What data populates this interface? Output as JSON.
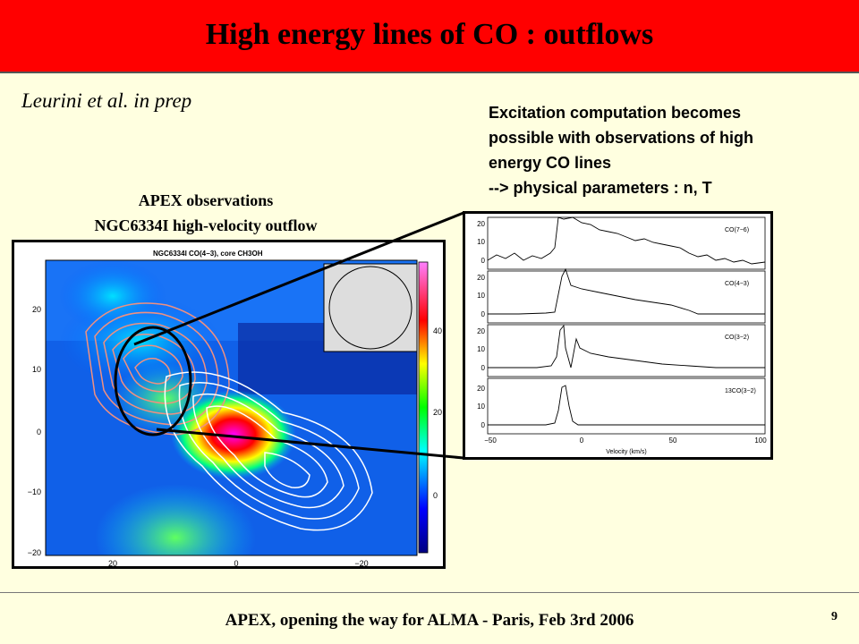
{
  "header": {
    "title": "High energy lines of CO : outflows",
    "bg_color": "#ff0000"
  },
  "author": "Leurini et al. in prep",
  "excitation": {
    "lines": [
      "Excitation computation becomes",
      "possible with observations of high",
      "energy CO lines",
      "-->  physical parameters : n, T"
    ]
  },
  "map_caption": {
    "line1": "APEX observations",
    "line2": "NGC6334I high-velocity outflow"
  },
  "map_panel": {
    "title": "NGC6334I CO(4−3), core CH3OH",
    "y_ticks": [
      "20",
      "10",
      "0",
      "−10",
      "−20"
    ],
    "x_ticks": [
      "20",
      "0",
      "−20"
    ],
    "colorbar_ticks": [
      "40",
      "20",
      "0"
    ]
  },
  "spectra_panel": {
    "x_label": "Velocity (km/s)",
    "x_ticks": [
      "−50",
      "0",
      "50",
      "100"
    ],
    "y_ticks": [
      "20",
      "10",
      "0"
    ],
    "lines": [
      "CO(7−6)",
      "CO(4−3)",
      "CO(3−2)",
      "13CO(3−2)"
    ]
  },
  "footer": {
    "text": "APEX, opening the way for ALMA  -  Paris, Feb 3rd 2006",
    "page": "9"
  }
}
